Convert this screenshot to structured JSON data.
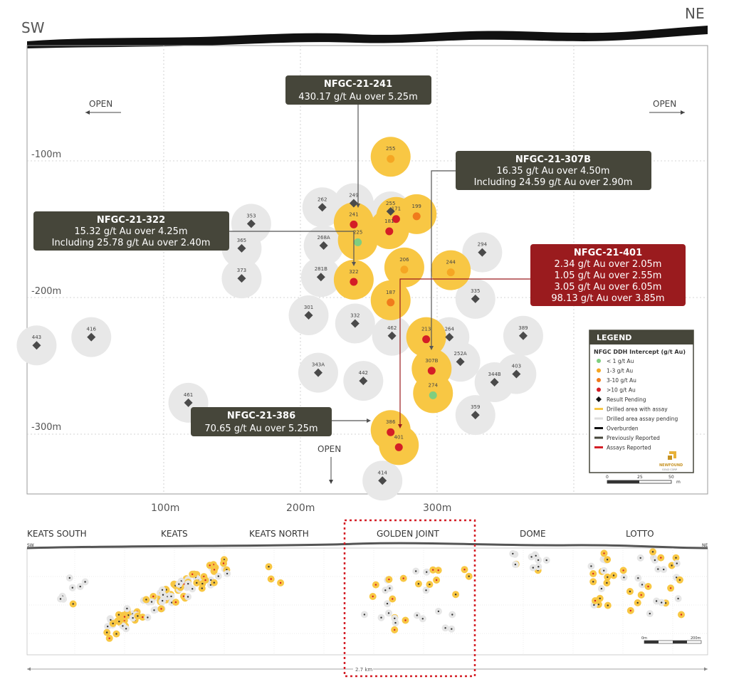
{
  "orientation": {
    "left": "SW",
    "right": "NE"
  },
  "open_labels": {
    "left": "OPEN",
    "right": "OPEN",
    "bottom": "OPEN"
  },
  "axes": {
    "depth_ticks": [
      "-100m",
      "-200m",
      "-300m"
    ],
    "distance_ticks": [
      "100m",
      "200m",
      "300m"
    ]
  },
  "colors": {
    "drilled_assay": "#f8c744",
    "drilled_pending": "#e8e8e8",
    "lt1": "#7fce7f",
    "g1to3": "#f5a623",
    "g3to10": "#f07b1c",
    "gt10": "#d41e26",
    "pending": "#4a4a4a",
    "callout_dark": "#46463a",
    "callout_red": "#9a1b1e"
  },
  "holes": [
    {
      "id": "255",
      "kind": "g1to3",
      "depth": -97,
      "dist": 266
    },
    {
      "id": "262",
      "kind": "pending",
      "depth": -134,
      "dist": 216
    },
    {
      "id": "249",
      "kind": "pending",
      "depth": -131,
      "dist": 239
    },
    {
      "id": "255",
      "kind": "pending",
      "depth": -137,
      "dist": 266
    },
    {
      "id": "171",
      "kind": "gt10",
      "depth": -141,
      "dist": 270
    },
    {
      "id": "199",
      "kind": "g3to10",
      "depth": -139,
      "dist": 285
    },
    {
      "id": "241",
      "kind": "gt10",
      "depth": -145,
      "dist": 239
    },
    {
      "id": "181",
      "kind": "gt10",
      "depth": -150,
      "dist": 265
    },
    {
      "id": "353",
      "kind": "pending",
      "depth": -146,
      "dist": 164
    },
    {
      "id": "225",
      "kind": "lt1",
      "depth": -158,
      "dist": 242
    },
    {
      "id": "268A",
      "kind": "pending",
      "depth": -162,
      "dist": 217
    },
    {
      "id": "365",
      "kind": "pending",
      "depth": -164,
      "dist": 157
    },
    {
      "id": "294",
      "kind": "pending",
      "depth": -167,
      "dist": 333
    },
    {
      "id": "206",
      "kind": "g1to3",
      "depth": -178,
      "dist": 276
    },
    {
      "id": "244",
      "kind": "g1to3",
      "depth": -180,
      "dist": 310
    },
    {
      "id": "373",
      "kind": "pending",
      "depth": -186,
      "dist": 157
    },
    {
      "id": "281B",
      "kind": "pending",
      "depth": -185,
      "dist": 215
    },
    {
      "id": "322",
      "kind": "gt10",
      "depth": -187,
      "dist": 239
    },
    {
      "id": "187",
      "kind": "g3to10",
      "depth": -202,
      "dist": 266
    },
    {
      "id": "335",
      "kind": "pending",
      "depth": -201,
      "dist": 328
    },
    {
      "id": "301",
      "kind": "pending",
      "depth": -213,
      "dist": 206
    },
    {
      "id": "332",
      "kind": "pending",
      "depth": -219,
      "dist": 240
    },
    {
      "id": "389",
      "kind": "pending",
      "depth": -228,
      "dist": 363
    },
    {
      "id": "416",
      "kind": "pending",
      "depth": -229,
      "dist": 47
    },
    {
      "id": "462",
      "kind": "pending",
      "depth": -228,
      "dist": 267
    },
    {
      "id": "213",
      "kind": "gt10",
      "depth": -229,
      "dist": 292
    },
    {
      "id": "264",
      "kind": "pending",
      "depth": -229,
      "dist": 309
    },
    {
      "id": "443",
      "kind": "pending",
      "depth": -235,
      "dist": 7
    },
    {
      "id": "252A",
      "kind": "pending",
      "depth": -247,
      "dist": 317
    },
    {
      "id": "307B",
      "kind": "gt10",
      "depth": -252,
      "dist": 296
    },
    {
      "id": "343A",
      "kind": "pending",
      "depth": -255,
      "dist": 213
    },
    {
      "id": "403",
      "kind": "pending",
      "depth": -256,
      "dist": 358
    },
    {
      "id": "442",
      "kind": "pending",
      "depth": -261,
      "dist": 246
    },
    {
      "id": "344B",
      "kind": "pending",
      "depth": -262,
      "dist": 342
    },
    {
      "id": "274",
      "kind": "lt1",
      "depth": -270,
      "dist": 297
    },
    {
      "id": "461",
      "kind": "pending",
      "depth": -277,
      "dist": 118
    },
    {
      "id": "359",
      "kind": "pending",
      "depth": -286,
      "dist": 328
    },
    {
      "id": "386",
      "kind": "gt10",
      "depth": -297,
      "dist": 266
    },
    {
      "id": "401",
      "kind": "gt10",
      "depth": -308,
      "dist": 272
    },
    {
      "id": "414",
      "kind": "pending",
      "depth": -334,
      "dist": 260
    }
  ],
  "callouts": [
    {
      "id": "c241",
      "title": "NFGC-21-241",
      "lines": [
        "430.17 g/t Au over 5.25m"
      ],
      "style": "dark"
    },
    {
      "id": "c307",
      "title": "NFGC-21-307B",
      "lines": [
        "16.35 g/t Au over 4.50m",
        "Including 24.59 g/t Au over 2.90m"
      ],
      "style": "dark"
    },
    {
      "id": "c322",
      "title": "NFGC-21-322",
      "lines": [
        "15.32 g/t Au over 4.25m",
        "Including 25.78 g/t Au over 2.40m"
      ],
      "style": "dark"
    },
    {
      "id": "c401",
      "title": "NFGC-21-401",
      "lines": [
        "2.34 g/t Au over 2.05m",
        "1.05 g/t Au over 2.55m",
        "3.05 g/t Au over 6.05m",
        "98.13 g/t Au over 3.85m"
      ],
      "style": "red"
    },
    {
      "id": "c386",
      "title": "NFGC-21-386",
      "lines": [
        "70.65 g/t Au over 5.25m"
      ],
      "style": "dark"
    }
  ],
  "legend": {
    "title": "LEGEND",
    "subtitle": "NFGC DDH Intercept (g/t Au)",
    "items": [
      {
        "label": "< 1 g/t Au",
        "sym": "lt1"
      },
      {
        "label": "1-3 g/t Au",
        "sym": "g1to3"
      },
      {
        "label": "3-10 g/t Au",
        "sym": "g3to10"
      },
      {
        "label": ">10 g/t Au",
        "sym": "gt10"
      },
      {
        "label": "Result Pending",
        "sym": "diamond"
      },
      {
        "label": "Drilled area with assay",
        "sym": "line-yellow"
      },
      {
        "label": "Drilled area assay pending",
        "sym": "line-grey"
      },
      {
        "label": "Overburden",
        "sym": "line-black"
      },
      {
        "label": "Previously Reported",
        "sym": "line-dark"
      },
      {
        "label": "Assays Reported",
        "sym": "line-red"
      }
    ],
    "scale": {
      "ticks": [
        "0",
        "25",
        "50"
      ],
      "unit": "m"
    },
    "logo_text": [
      "NEWFOUND",
      "GOLD CORP"
    ]
  },
  "overview": {
    "zones": [
      "KEATS SOUTH",
      "KEATS",
      "KEATS NORTH",
      "GOLDEN JOINT",
      "DOME",
      "LOTTO"
    ],
    "sw": "SW",
    "ne": "NE",
    "total_length": "2.7 km",
    "scale_ticks": [
      "0m",
      "200m"
    ]
  }
}
